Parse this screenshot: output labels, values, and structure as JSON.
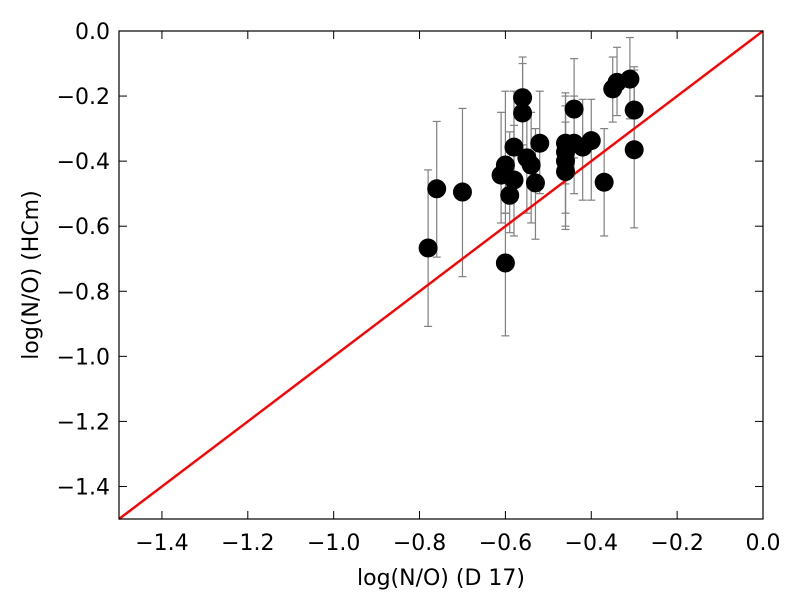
{
  "chart_data": {
    "type": "scatter",
    "title": "",
    "xlabel": "log(N/O) (D 17)",
    "ylabel": "log(N/O) (HCm)",
    "xlim": [
      -1.5,
      0.0
    ],
    "ylim": [
      -1.5,
      0.0
    ],
    "grid": false,
    "x_ticks": [
      -1.4,
      -1.2,
      -1.0,
      -0.8,
      -0.6,
      -0.4,
      -0.2,
      0.0
    ],
    "x_tick_labels": [
      "−1.4",
      "−1.2",
      "−1.0",
      "−0.8",
      "−0.6",
      "−0.4",
      "−0.2",
      "0.0"
    ],
    "y_ticks": [
      0.0,
      -0.2,
      -0.4,
      -0.6,
      -0.8,
      -1.0,
      -1.2,
      -1.4
    ],
    "y_tick_labels": [
      "0.0",
      "−0.2",
      "−0.4",
      "−0.6",
      "−0.8",
      "−1.0",
      "−1.2",
      "−1.4"
    ],
    "reference_line": {
      "x": [
        -1.5,
        0.0
      ],
      "y": [
        -1.5,
        0.0
      ],
      "color": "#ff0000"
    },
    "marker_color": "#000000",
    "errorbar_color": "#808080",
    "points": [
      {
        "x": -0.78,
        "y": -0.667,
        "ylow": -0.908,
        "yhigh": -0.427
      },
      {
        "x": -0.76,
        "y": -0.485,
        "ylow": -0.695,
        "yhigh": -0.278
      },
      {
        "x": -0.7,
        "y": -0.495,
        "ylow": -0.755,
        "yhigh": -0.238
      },
      {
        "x": -0.6,
        "y": -0.713,
        "ylow": -0.937,
        "yhigh": -0.56
      },
      {
        "x": -0.6,
        "y": -0.412,
        "ylow": -0.56,
        "yhigh": -0.185
      },
      {
        "x": -0.61,
        "y": -0.443,
        "ylow": -0.59,
        "yhigh": -0.25
      },
      {
        "x": -0.58,
        "y": -0.357,
        "ylow": -0.52,
        "yhigh": -0.185
      },
      {
        "x": -0.58,
        "y": -0.458,
        "ylow": -0.63,
        "yhigh": -0.29
      },
      {
        "x": -0.59,
        "y": -0.505,
        "ylow": -0.62,
        "yhigh": -0.31
      },
      {
        "x": -0.56,
        "y": -0.205,
        "ylow": -0.35,
        "yhigh": -0.08
      },
      {
        "x": -0.56,
        "y": -0.252,
        "ylow": -0.39,
        "yhigh": -0.1
      },
      {
        "x": -0.55,
        "y": -0.39,
        "ylow": -0.56,
        "yhigh": -0.25
      },
      {
        "x": -0.54,
        "y": -0.412,
        "ylow": -0.59,
        "yhigh": -0.25
      },
      {
        "x": -0.53,
        "y": -0.467,
        "ylow": -0.64,
        "yhigh": -0.3
      },
      {
        "x": -0.52,
        "y": -0.345,
        "ylow": -0.5,
        "yhigh": -0.185
      },
      {
        "x": -0.46,
        "y": -0.345,
        "ylow": -0.47,
        "yhigh": -0.19
      },
      {
        "x": -0.46,
        "y": -0.372,
        "ylow": -0.56,
        "yhigh": -0.2
      },
      {
        "x": -0.46,
        "y": -0.4,
        "ylow": -0.61,
        "yhigh": -0.23
      },
      {
        "x": -0.46,
        "y": -0.432,
        "ylow": -0.6,
        "yhigh": -0.28
      },
      {
        "x": -0.44,
        "y": -0.24,
        "ylow": -0.39,
        "yhigh": -0.085
      },
      {
        "x": -0.44,
        "y": -0.345,
        "ylow": -0.5,
        "yhigh": -0.2
      },
      {
        "x": -0.42,
        "y": -0.357,
        "ylow": -0.52,
        "yhigh": -0.21
      },
      {
        "x": -0.4,
        "y": -0.337,
        "ylow": -0.52,
        "yhigh": -0.21
      },
      {
        "x": -0.37,
        "y": -0.465,
        "ylow": -0.63,
        "yhigh": -0.3
      },
      {
        "x": -0.35,
        "y": -0.178,
        "ylow": -0.28,
        "yhigh": -0.08
      },
      {
        "x": -0.34,
        "y": -0.158,
        "ylow": -0.26,
        "yhigh": -0.05
      },
      {
        "x": -0.31,
        "y": -0.148,
        "ylow": -0.27,
        "yhigh": -0.02
      },
      {
        "x": -0.3,
        "y": -0.243,
        "ylow": -0.35,
        "yhigh": -0.11
      },
      {
        "x": -0.3,
        "y": -0.365,
        "ylow": -0.605,
        "yhigh": -0.12
      }
    ]
  }
}
